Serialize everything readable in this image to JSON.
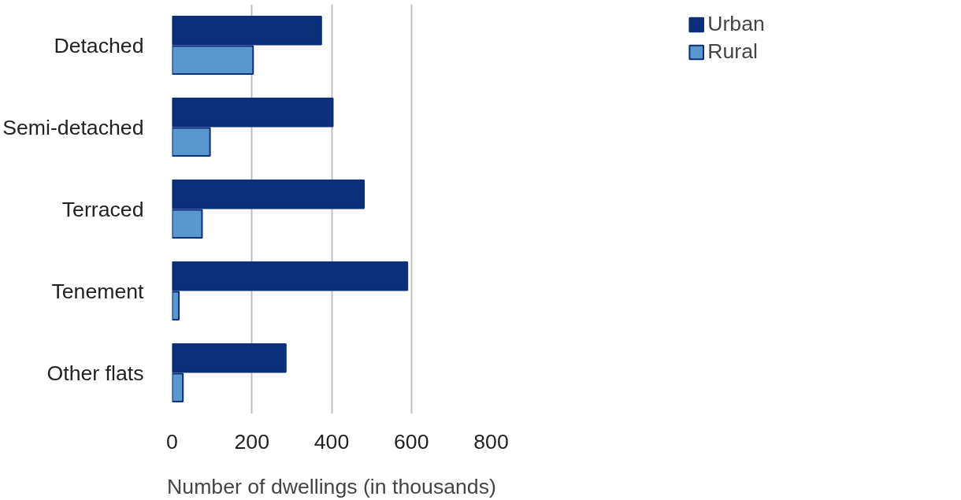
{
  "chart_data": {
    "type": "bar",
    "orientation": "horizontal",
    "xlabel": "Number of dwellings (in thousands)",
    "categories": [
      "Detached",
      "Semi-detached",
      "Terraced",
      "Tenement",
      "Other flats"
    ],
    "series": [
      {
        "name": "Urban",
        "color": "#0b2f7a",
        "values": [
          374,
          403,
          481,
          590,
          285
        ]
      },
      {
        "name": "Rural",
        "color": "#5b97cf",
        "values": [
          203,
          95,
          75,
          17,
          27
        ]
      }
    ],
    "xlim": [
      0,
      800
    ],
    "xticks": [
      0,
      200,
      400,
      600,
      800
    ],
    "grid": "x",
    "legend": "top right"
  }
}
